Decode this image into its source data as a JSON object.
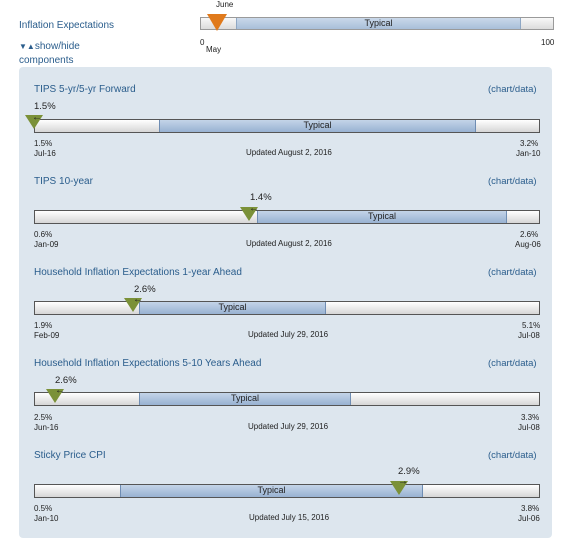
{
  "top": {
    "title": "Inflation Expectations",
    "toggle_arrows": "▼▲",
    "toggle_label": "show/hide",
    "toggle_label2": "components",
    "marker_label": "June",
    "typical": "Typical",
    "min": "0",
    "max": "100",
    "min_month": "May",
    "marker_color": "#e07a1c"
  },
  "indicators": [
    {
      "title": "TIPS 5-yr/5-yr Forward",
      "link": "(chart/data)",
      "current": "1.5%",
      "typical": "Typical",
      "min_value": "1.5%",
      "min_date": "Jul-16",
      "max_value": "3.2%",
      "max_date": "Jan-10",
      "updated": "Updated August 2, 2016",
      "direction_glyph": "←"
    },
    {
      "title": "TIPS 10-year",
      "link": "(chart/data)",
      "current": "1.4%",
      "typical": "Typical",
      "min_value": "0.6%",
      "min_date": "Jan-09",
      "max_value": "2.6%",
      "max_date": "Aug-06",
      "updated": "Updated August 2, 2016",
      "direction_glyph": "←"
    },
    {
      "title": "Household Inflation Expectations 1-year Ahead",
      "link": "(chart/data)",
      "current": "2.6%",
      "typical": "Typical",
      "min_value": "1.9%",
      "min_date": "Feb-09",
      "max_value": "5.1%",
      "max_date": "Jul-08",
      "updated": "Updated July 29, 2016",
      "direction_glyph": "←"
    },
    {
      "title": "Household Inflation Expectations 5-10 Years Ahead",
      "link": "(chart/data)",
      "current": "2.6%",
      "typical": "Typical",
      "min_value": "2.5%",
      "min_date": "Jun-16",
      "max_value": "3.3%",
      "max_date": "Jul-08",
      "updated": "Updated July 29, 2016",
      "direction_glyph": "←"
    },
    {
      "title": "Sticky Price CPI",
      "link": "(chart/data)",
      "current": "2.9%",
      "typical": "Typical",
      "min_value": "0.5%",
      "min_date": "Jan-10",
      "max_value": "3.8%",
      "max_date": "Jul-06",
      "updated": "Updated July 15, 2016",
      "direction_glyph": "→"
    }
  ],
  "colors": {
    "link_blue": "#2a5d8c",
    "marker_green": "#7b9138",
    "marker_orange": "#e07a1c",
    "typical_blue": "#a8bfd9",
    "panel_bg": "#dde6ee"
  }
}
